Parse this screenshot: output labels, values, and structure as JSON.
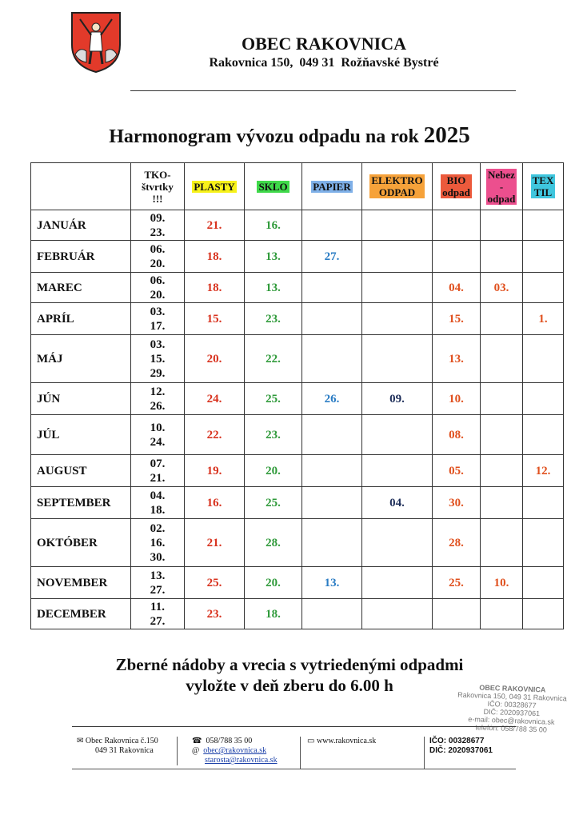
{
  "header": {
    "name": "OBEC RAKOVNICA",
    "address": "Rakovnica 150,  049 31  Rožňavské Bystré"
  },
  "title": {
    "text": "Harmonogram vývozu odpadu na rok",
    "year": "2025"
  },
  "table": {
    "columns": [
      {
        "key": "tko",
        "lines": [
          "TKO-",
          "štvrtky",
          "!!!"
        ],
        "color": "#111111"
      },
      {
        "key": "plasty",
        "lines": [
          "PLASTY"
        ],
        "bg": "#f7f21a",
        "color": "#d8321e"
      },
      {
        "key": "sklo",
        "lines": [
          "SKLO"
        ],
        "bg": "#3fd94a",
        "color": "#2f9a3a"
      },
      {
        "key": "papier",
        "lines": [
          "PAPIER"
        ],
        "bg": "#7fb0e8",
        "color": "#2a7cc4"
      },
      {
        "key": "elektro",
        "lines": [
          "ELEKTRO",
          "ODPAD"
        ],
        "bg": "#f6a23a",
        "color": "#1f2f5a"
      },
      {
        "key": "bio",
        "lines": [
          "BIO",
          "odpad"
        ],
        "bg": "#ec5a3c",
        "color": "#e0501e"
      },
      {
        "key": "nebez",
        "lines": [
          "Nebez",
          "-",
          "odpad"
        ],
        "bg": "#ec4f8e",
        "color": "#e0501e"
      },
      {
        "key": "textil",
        "lines": [
          "TEX",
          "TIL"
        ],
        "bg": "#3fc6de",
        "color": "#e0501e"
      }
    ],
    "rows": [
      {
        "month": "JANUÁR",
        "tko": [
          "09.",
          "23."
        ],
        "plasty": "21.",
        "sklo": "16."
      },
      {
        "month": "FEBRUÁR",
        "tko": [
          "06.",
          "20."
        ],
        "plasty": "18.",
        "sklo": "13.",
        "papier": "27."
      },
      {
        "month": "MAREC",
        "tko": [
          "06.",
          "20."
        ],
        "plasty": "18.",
        "sklo": "13.",
        "bio": "04.",
        "nebez": "03."
      },
      {
        "month": "APRÍL",
        "tko": [
          "03.",
          "17."
        ],
        "plasty": "15.",
        "sklo": "23.",
        "bio": "15.",
        "textil": "1."
      },
      {
        "month": "MÁJ",
        "tko": [
          "03.",
          "15.",
          "29."
        ],
        "plasty": "20.",
        "sklo": "22.",
        "bio": "13."
      },
      {
        "month": "JÚN",
        "tko": [
          "12.",
          "26."
        ],
        "plasty": "24.",
        "sklo": "25.",
        "papier": "26.",
        "elektro": "09.",
        "bio": "10."
      },
      {
        "month": "JÚL",
        "tko": [
          "10.",
          "24."
        ],
        "plasty": "22.",
        "sklo": "23.",
        "bio": "08."
      },
      {
        "month": "AUGUST",
        "tko": [
          "07.",
          "21."
        ],
        "plasty": "19.",
        "sklo": "20.",
        "bio": "05.",
        "textil": "12."
      },
      {
        "month": "SEPTEMBER",
        "tko": [
          "04.",
          "18."
        ],
        "plasty": "16.",
        "sklo": "25.",
        "elektro": "04.",
        "bio": "30."
      },
      {
        "month": "OKTÓBER",
        "tko": [
          "02.",
          "16.",
          "30."
        ],
        "plasty": "21.",
        "sklo": "28.",
        "bio": "28."
      },
      {
        "month": "NOVEMBER",
        "tko": [
          "13.",
          "27."
        ],
        "plasty": "25.",
        "sklo": "20.",
        "papier": "13.",
        "bio": "25.",
        "nebez": "10."
      },
      {
        "month": "DECEMBER",
        "tko": [
          "11.",
          "27."
        ],
        "plasty": "23.",
        "sklo": "18."
      }
    ]
  },
  "notice": [
    "Zberné nádoby a vrecia s vytriedenými odpadmi",
    "vyložte v deň zberu do 6.00 h"
  ],
  "stamp": [
    "OBEC RAKOVNICA",
    "Rakovnica 150, 049 31 Rakovnica",
    "IČO: 00328677",
    "DIČ: 2020937061",
    "e-mail: obec@rakovnica.sk",
    "telefón: 058/788 35 00"
  ],
  "footer": {
    "address": [
      "Obec Rakovnica č.150",
      "049 31 Rakovnica"
    ],
    "phone": "058/788 35 00",
    "emails": [
      "obec@rakovnica.sk",
      "starosta@rakovnica.sk"
    ],
    "web": "www.rakovnica.sk",
    "ids": [
      "IČO: 00328677",
      "DIČ: 2020937061"
    ]
  }
}
